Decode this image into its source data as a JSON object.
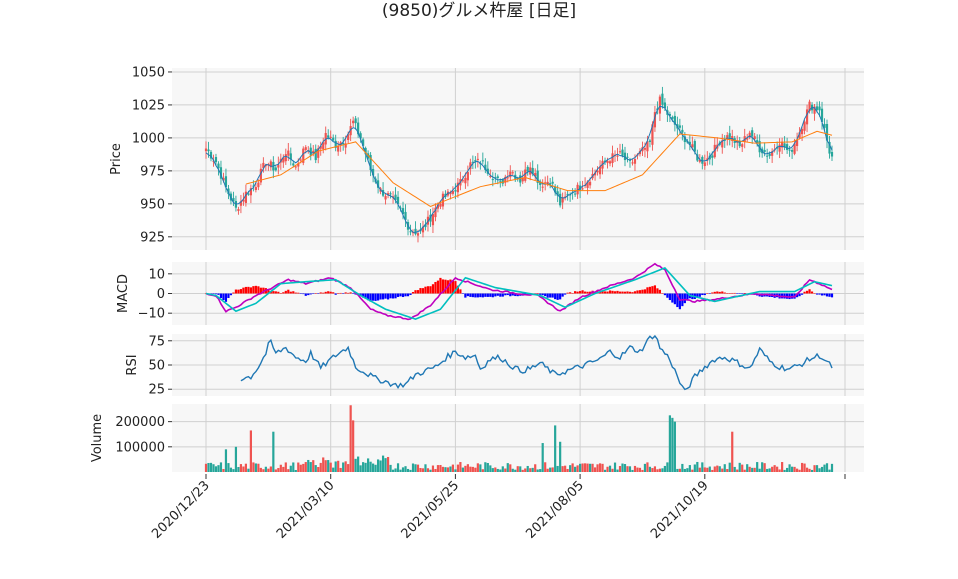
{
  "title": "(9850)グルメ杵屋 [日足]",
  "colors": {
    "panel_bg": "#f7f7f7",
    "grid": "#d0d0d0",
    "up": "#ef5350",
    "down": "#26a69a",
    "line_price": "#1f77b4",
    "line_ma": "#ff7f0e",
    "macd_line": "#bf00bf",
    "signal_line": "#00bfbf",
    "hist_pos": "#ff0000",
    "hist_neg": "#0000ff",
    "rsi": "#1f77b4"
  },
  "chart_data": {
    "type": "candlestick",
    "x_ticks": [
      "2020/12/23",
      "2021/03/10",
      "2021/05/25",
      "2021/08/05",
      "2021/10/19"
    ],
    "panels": {
      "price": {
        "ylabel": "Price",
        "ylim": [
          915,
          1053
        ],
        "yticks": [
          925,
          950,
          975,
          1000,
          1025,
          1050
        ],
        "anchors_close": [
          [
            0,
            992
          ],
          [
            4,
            982
          ],
          [
            8,
            962
          ],
          [
            12,
            946
          ],
          [
            16,
            958
          ],
          [
            20,
            965
          ],
          [
            24,
            982
          ],
          [
            28,
            976
          ],
          [
            32,
            990
          ],
          [
            36,
            978
          ],
          [
            40,
            994
          ],
          [
            44,
            985
          ],
          [
            48,
            1003
          ],
          [
            52,
            995
          ],
          [
            56,
            999
          ],
          [
            59,
            1012
          ],
          [
            62,
            1000
          ],
          [
            66,
            976
          ],
          [
            70,
            960
          ],
          [
            74,
            955
          ],
          [
            78,
            945
          ],
          [
            82,
            930
          ],
          [
            86,
            928
          ],
          [
            90,
            940
          ],
          [
            94,
            953
          ],
          [
            98,
            958
          ],
          [
            102,
            966
          ],
          [
            106,
            980
          ],
          [
            110,
            982
          ],
          [
            114,
            974
          ],
          [
            118,
            965
          ],
          [
            122,
            976
          ],
          [
            126,
            968
          ],
          [
            130,
            980
          ],
          [
            134,
            965
          ],
          [
            138,
            968
          ],
          [
            142,
            950
          ],
          [
            146,
            958
          ],
          [
            150,
            963
          ],
          [
            154,
            970
          ],
          [
            158,
            978
          ],
          [
            162,
            985
          ],
          [
            166,
            987
          ],
          [
            170,
            980
          ],
          [
            174,
            988
          ],
          [
            178,
            996
          ],
          [
            180,
            1020
          ],
          [
            182,
            1028
          ],
          [
            186,
            1015
          ],
          [
            190,
            1005
          ],
          [
            194,
            995
          ],
          [
            198,
            982
          ],
          [
            202,
            985
          ],
          [
            206,
            998
          ],
          [
            210,
            1002
          ],
          [
            214,
            993
          ],
          [
            218,
            1005
          ],
          [
            222,
            992
          ],
          [
            226,
            987
          ],
          [
            230,
            998
          ],
          [
            234,
            988
          ],
          [
            238,
            1005
          ],
          [
            242,
            1025
          ],
          [
            246,
            1022
          ],
          [
            250,
            990
          ],
          [
            251,
            985
          ]
        ],
        "ma_anchors": [
          [
            16,
            965
          ],
          [
            30,
            972
          ],
          [
            45,
            990
          ],
          [
            60,
            997
          ],
          [
            75,
            966
          ],
          [
            90,
            948
          ],
          [
            110,
            963
          ],
          [
            128,
            970
          ],
          [
            145,
            960
          ],
          [
            160,
            960
          ],
          [
            175,
            972
          ],
          [
            190,
            1003
          ],
          [
            205,
            1000
          ],
          [
            220,
            996
          ],
          [
            235,
            997
          ],
          [
            245,
            1005
          ],
          [
            251,
            1002
          ]
        ]
      },
      "macd": {
        "ylabel": "MACD",
        "ylim": [
          -16,
          16
        ],
        "yticks": [
          -10,
          0,
          10
        ],
        "macd_anchors": [
          [
            0,
            0
          ],
          [
            4,
            -1
          ],
          [
            8,
            -9
          ],
          [
            12,
            -7
          ],
          [
            20,
            -1
          ],
          [
            25,
            2
          ],
          [
            33,
            7
          ],
          [
            40,
            5
          ],
          [
            50,
            8
          ],
          [
            58,
            3
          ],
          [
            66,
            -8
          ],
          [
            72,
            -11
          ],
          [
            82,
            -13
          ],
          [
            90,
            -6
          ],
          [
            100,
            8
          ],
          [
            114,
            2
          ],
          [
            125,
            0
          ],
          [
            133,
            -1
          ],
          [
            142,
            -9
          ],
          [
            150,
            -2
          ],
          [
            160,
            3
          ],
          [
            172,
            8
          ],
          [
            180,
            15
          ],
          [
            184,
            12
          ],
          [
            190,
            -3
          ],
          [
            196,
            -4
          ],
          [
            204,
            -3
          ],
          [
            220,
            0
          ],
          [
            236,
            -2
          ],
          [
            242,
            7
          ],
          [
            246,
            5
          ],
          [
            251,
            2
          ]
        ],
        "signal_anchors": [
          [
            0,
            0
          ],
          [
            4,
            -1
          ],
          [
            12,
            -9
          ],
          [
            20,
            -5
          ],
          [
            30,
            5
          ],
          [
            40,
            6
          ],
          [
            52,
            7
          ],
          [
            62,
            -1
          ],
          [
            72,
            -8
          ],
          [
            84,
            -13
          ],
          [
            94,
            -8
          ],
          [
            104,
            8
          ],
          [
            116,
            3
          ],
          [
            134,
            -1
          ],
          [
            144,
            -7
          ],
          [
            156,
            0
          ],
          [
            172,
            7
          ],
          [
            184,
            13
          ],
          [
            194,
            -1
          ],
          [
            204,
            -4
          ],
          [
            222,
            1
          ],
          [
            236,
            1
          ],
          [
            244,
            6
          ],
          [
            251,
            4
          ]
        ]
      },
      "rsi": {
        "ylabel": "RSI",
        "ylim": [
          18,
          82
        ],
        "yticks": [
          25,
          50,
          75
        ],
        "anchors": [
          [
            14,
            36
          ],
          [
            18,
            38
          ],
          [
            21,
            48
          ],
          [
            24,
            62
          ],
          [
            25,
            70
          ],
          [
            26,
            73
          ],
          [
            28,
            62
          ],
          [
            32,
            68
          ],
          [
            36,
            58
          ],
          [
            40,
            54
          ],
          [
            42,
            62
          ],
          [
            46,
            47
          ],
          [
            52,
            60
          ],
          [
            55,
            65
          ],
          [
            57,
            68
          ],
          [
            60,
            48
          ],
          [
            64,
            42
          ],
          [
            68,
            36
          ],
          [
            72,
            33
          ],
          [
            76,
            29
          ],
          [
            80,
            30
          ],
          [
            84,
            40
          ],
          [
            88,
            44
          ],
          [
            92,
            48
          ],
          [
            94,
            52
          ],
          [
            96,
            57
          ],
          [
            100,
            64
          ],
          [
            104,
            58
          ],
          [
            108,
            60
          ],
          [
            110,
            46
          ],
          [
            114,
            56
          ],
          [
            118,
            58
          ],
          [
            122,
            50
          ],
          [
            126,
            44
          ],
          [
            130,
            46
          ],
          [
            134,
            52
          ],
          [
            140,
            40
          ],
          [
            146,
            45
          ],
          [
            152,
            50
          ],
          [
            158,
            56
          ],
          [
            162,
            64
          ],
          [
            166,
            58
          ],
          [
            170,
            68
          ],
          [
            174,
            64
          ],
          [
            178,
            78
          ],
          [
            180,
            82
          ],
          [
            182,
            68
          ],
          [
            186,
            56
          ],
          [
            190,
            32
          ],
          [
            192,
            22
          ],
          [
            196,
            38
          ],
          [
            200,
            48
          ],
          [
            204,
            56
          ],
          [
            208,
            58
          ],
          [
            212,
            54
          ],
          [
            218,
            46
          ],
          [
            222,
            66
          ],
          [
            226,
            54
          ],
          [
            230,
            48
          ],
          [
            234,
            46
          ],
          [
            238,
            50
          ],
          [
            242,
            56
          ],
          [
            246,
            60
          ],
          [
            251,
            48
          ]
        ]
      },
      "volume": {
        "ylabel": "Volume",
        "ylim": [
          0,
          270000
        ],
        "yticks": [
          100000,
          200000
        ]
      }
    }
  }
}
